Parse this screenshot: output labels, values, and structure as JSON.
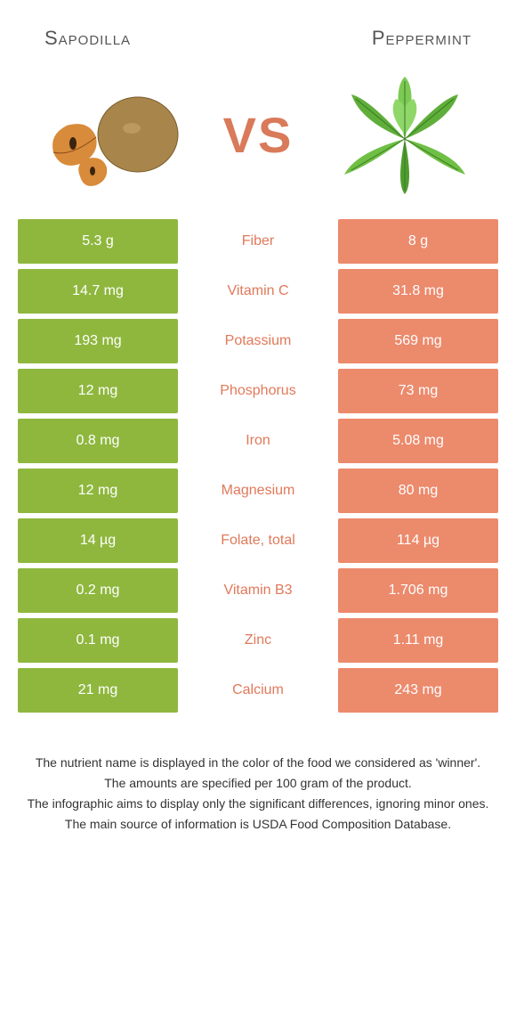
{
  "header": {
    "left_title": "Sapodilla",
    "right_title": "Peppermint"
  },
  "hero": {
    "vs_text": "VS"
  },
  "colors": {
    "left_bg": "#8fb73e",
    "right_bg": "#ec8a6c",
    "mid_text_left": "#8fb73e",
    "mid_text_right": "#e0795a",
    "bg": "#ffffff"
  },
  "rows": [
    {
      "left": "5.3 g",
      "label": "Fiber",
      "right": "8 g",
      "winner": "right"
    },
    {
      "left": "14.7 mg",
      "label": "Vitamin C",
      "right": "31.8 mg",
      "winner": "right"
    },
    {
      "left": "193 mg",
      "label": "Potassium",
      "right": "569 mg",
      "winner": "right"
    },
    {
      "left": "12 mg",
      "label": "Phosphorus",
      "right": "73 mg",
      "winner": "right"
    },
    {
      "left": "0.8 mg",
      "label": "Iron",
      "right": "5.08 mg",
      "winner": "right"
    },
    {
      "left": "12 mg",
      "label": "Magnesium",
      "right": "80 mg",
      "winner": "right"
    },
    {
      "left": "14 µg",
      "label": "Folate, total",
      "right": "114 µg",
      "winner": "right"
    },
    {
      "left": "0.2 mg",
      "label": "Vitamin B3",
      "right": "1.706 mg",
      "winner": "right"
    },
    {
      "left": "0.1 mg",
      "label": "Zinc",
      "right": "1.11 mg",
      "winner": "right"
    },
    {
      "left": "21 mg",
      "label": "Calcium",
      "right": "243 mg",
      "winner": "right"
    }
  ],
  "footnotes": [
    "The nutrient name is displayed in the color of the food we considered as 'winner'.",
    "The amounts are specified per 100 gram of the product.",
    "The infographic aims to display only the significant differences, ignoring minor ones.",
    "The main source of information is USDA Food Composition Database."
  ]
}
